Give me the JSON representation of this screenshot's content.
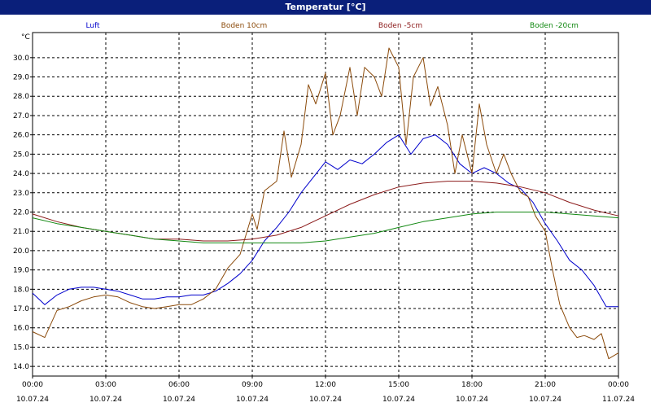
{
  "window": {
    "title": "Temperatur [°C]"
  },
  "chart_data": {
    "type": "line",
    "ylabel": "°C",
    "ylim": [
      13.5,
      31.3
    ],
    "y_ticks": [
      14.0,
      15.0,
      16.0,
      17.0,
      18.0,
      19.0,
      20.0,
      21.0,
      22.0,
      23.0,
      24.0,
      25.0,
      26.0,
      27.0,
      28.0,
      29.0,
      30.0
    ],
    "xlim": [
      0,
      24
    ],
    "x_ticks": [
      {
        "x": 0,
        "time": "00:00",
        "date": "10.07.24"
      },
      {
        "x": 3,
        "time": "03:00",
        "date": "10.07.24"
      },
      {
        "x": 6,
        "time": "06:00",
        "date": "10.07.24"
      },
      {
        "x": 9,
        "time": "09:00",
        "date": "10.07.24"
      },
      {
        "x": 12,
        "time": "12:00",
        "date": "10.07.24"
      },
      {
        "x": 15,
        "time": "15:00",
        "date": "10.07.24"
      },
      {
        "x": 18,
        "time": "18:00",
        "date": "10.07.24"
      },
      {
        "x": 21,
        "time": "21:00",
        "date": "10.07.24"
      },
      {
        "x": 24,
        "time": "00:00",
        "date": "11.07.24"
      }
    ],
    "grid": true,
    "legend_position": "top",
    "series": [
      {
        "name": "Luft",
        "color": "#0000cc",
        "points": [
          [
            0,
            17.8
          ],
          [
            0.5,
            17.2
          ],
          [
            1,
            17.7
          ],
          [
            1.5,
            18.0
          ],
          [
            2,
            18.1
          ],
          [
            2.5,
            18.1
          ],
          [
            3,
            18.0
          ],
          [
            3.5,
            17.9
          ],
          [
            4,
            17.7
          ],
          [
            4.5,
            17.5
          ],
          [
            5,
            17.5
          ],
          [
            5.5,
            17.6
          ],
          [
            6,
            17.6
          ],
          [
            6.5,
            17.7
          ],
          [
            7,
            17.7
          ],
          [
            7.5,
            17.9
          ],
          [
            8,
            18.3
          ],
          [
            8.5,
            18.8
          ],
          [
            9,
            19.5
          ],
          [
            9.5,
            20.5
          ],
          [
            10,
            21.2
          ],
          [
            10.5,
            22.0
          ],
          [
            11,
            23.0
          ],
          [
            11.5,
            23.8
          ],
          [
            12,
            24.6
          ],
          [
            12.5,
            24.2
          ],
          [
            13,
            24.7
          ],
          [
            13.5,
            24.5
          ],
          [
            14,
            25.0
          ],
          [
            14.5,
            25.6
          ],
          [
            15,
            26.0
          ],
          [
            15.5,
            25.0
          ],
          [
            16,
            25.8
          ],
          [
            16.5,
            26.0
          ],
          [
            17,
            25.5
          ],
          [
            17.5,
            24.5
          ],
          [
            18,
            24.0
          ],
          [
            18.5,
            24.3
          ],
          [
            19,
            24.0
          ],
          [
            19.5,
            23.5
          ],
          [
            20,
            23.2
          ],
          [
            20.5,
            22.5
          ],
          [
            21,
            21.4
          ],
          [
            21.5,
            20.5
          ],
          [
            22,
            19.5
          ],
          [
            22.5,
            19.0
          ],
          [
            23,
            18.2
          ],
          [
            23.5,
            17.1
          ],
          [
            24,
            17.1
          ]
        ]
      },
      {
        "name": "Boden 10cm",
        "color": "#8b4a0a",
        "points": [
          [
            0,
            15.8
          ],
          [
            0.5,
            15.5
          ],
          [
            1,
            16.9
          ],
          [
            1.5,
            17.1
          ],
          [
            2,
            17.4
          ],
          [
            2.5,
            17.6
          ],
          [
            3,
            17.7
          ],
          [
            3.5,
            17.6
          ],
          [
            4,
            17.3
          ],
          [
            4.5,
            17.1
          ],
          [
            5,
            17.0
          ],
          [
            5.5,
            17.1
          ],
          [
            6,
            17.2
          ],
          [
            6.5,
            17.2
          ],
          [
            7,
            17.5
          ],
          [
            7.5,
            18.0
          ],
          [
            8,
            19.1
          ],
          [
            8.5,
            19.8
          ],
          [
            9,
            21.9
          ],
          [
            9.2,
            21.1
          ],
          [
            9.5,
            23.1
          ],
          [
            10,
            23.6
          ],
          [
            10.3,
            26.2
          ],
          [
            10.6,
            23.8
          ],
          [
            11,
            25.5
          ],
          [
            11.3,
            28.6
          ],
          [
            11.6,
            27.6
          ],
          [
            12,
            29.2
          ],
          [
            12.3,
            26.0
          ],
          [
            12.6,
            27.0
          ],
          [
            13,
            29.5
          ],
          [
            13.3,
            27.0
          ],
          [
            13.6,
            29.5
          ],
          [
            14,
            29.0
          ],
          [
            14.3,
            28.0
          ],
          [
            14.6,
            30.5
          ],
          [
            15,
            29.5
          ],
          [
            15.3,
            25.5
          ],
          [
            15.6,
            29.0
          ],
          [
            16,
            30.0
          ],
          [
            16.3,
            27.5
          ],
          [
            16.6,
            28.5
          ],
          [
            17,
            26.5
          ],
          [
            17.3,
            24.0
          ],
          [
            17.6,
            26.0
          ],
          [
            18,
            24.0
          ],
          [
            18.3,
            27.6
          ],
          [
            18.6,
            25.5
          ],
          [
            19,
            24.0
          ],
          [
            19.3,
            25.0
          ],
          [
            19.6,
            24.0
          ],
          [
            20,
            23.0
          ],
          [
            20.3,
            22.8
          ],
          [
            20.6,
            21.8
          ],
          [
            21,
            21.0
          ],
          [
            21.3,
            19.0
          ],
          [
            21.6,
            17.2
          ],
          [
            22,
            16.0
          ],
          [
            22.3,
            15.5
          ],
          [
            22.6,
            15.6
          ],
          [
            23,
            15.4
          ],
          [
            23.3,
            15.7
          ],
          [
            23.6,
            14.4
          ],
          [
            24,
            14.7
          ]
        ]
      },
      {
        "name": "Boden -5cm",
        "color": "#8b1a1a",
        "points": [
          [
            0,
            21.9
          ],
          [
            1,
            21.5
          ],
          [
            2,
            21.2
          ],
          [
            3,
            21.0
          ],
          [
            4,
            20.8
          ],
          [
            5,
            20.6
          ],
          [
            6,
            20.6
          ],
          [
            7,
            20.5
          ],
          [
            8,
            20.5
          ],
          [
            9,
            20.6
          ],
          [
            10,
            20.8
          ],
          [
            11,
            21.2
          ],
          [
            12,
            21.8
          ],
          [
            13,
            22.4
          ],
          [
            14,
            22.9
          ],
          [
            15,
            23.3
          ],
          [
            16,
            23.5
          ],
          [
            17,
            23.6
          ],
          [
            18,
            23.6
          ],
          [
            19,
            23.5
          ],
          [
            20,
            23.3
          ],
          [
            21,
            23.0
          ],
          [
            22,
            22.5
          ],
          [
            23,
            22.1
          ],
          [
            24,
            21.8
          ]
        ]
      },
      {
        "name": "Boden -20cm",
        "color": "#118811",
        "points": [
          [
            0,
            21.7
          ],
          [
            1,
            21.4
          ],
          [
            2,
            21.2
          ],
          [
            3,
            21.0
          ],
          [
            4,
            20.8
          ],
          [
            5,
            20.6
          ],
          [
            6,
            20.5
          ],
          [
            7,
            20.4
          ],
          [
            8,
            20.4
          ],
          [
            9,
            20.4
          ],
          [
            10,
            20.4
          ],
          [
            11,
            20.4
          ],
          [
            12,
            20.5
          ],
          [
            13,
            20.7
          ],
          [
            14,
            20.9
          ],
          [
            15,
            21.2
          ],
          [
            16,
            21.5
          ],
          [
            17,
            21.7
          ],
          [
            18,
            21.9
          ],
          [
            19,
            22.0
          ],
          [
            20,
            22.0
          ],
          [
            21,
            22.0
          ],
          [
            22,
            21.9
          ],
          [
            23,
            21.8
          ],
          [
            24,
            21.7
          ]
        ]
      }
    ]
  }
}
